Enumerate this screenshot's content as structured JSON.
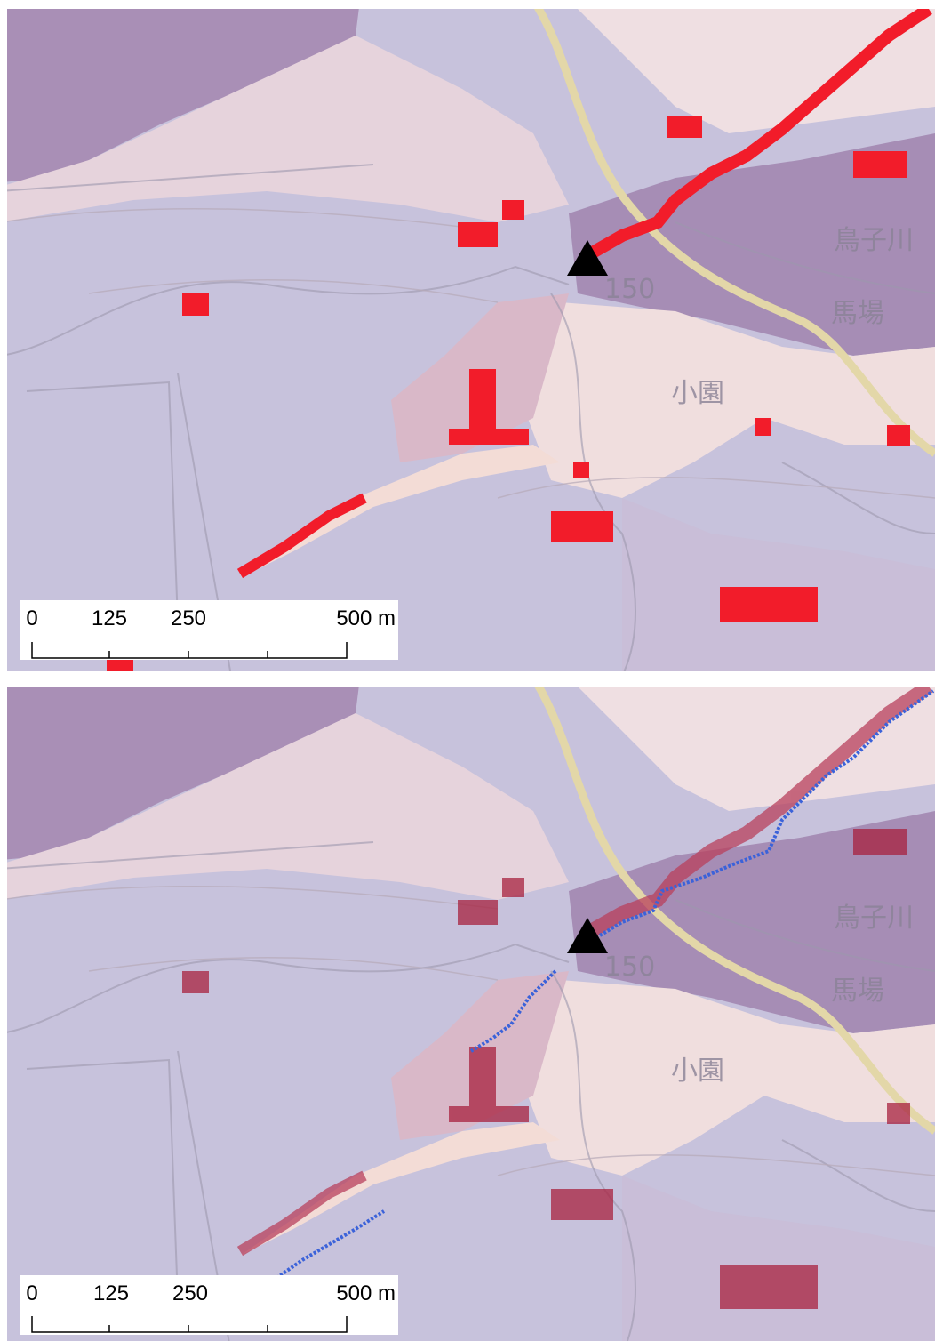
{
  "panels": [
    {
      "map_labels": [
        "150",
        "鳥子川",
        "馬場",
        "小園"
      ],
      "scale_bar": {
        "labels": [
          "0",
          "125",
          "250",
          "500 m"
        ]
      }
    },
    {
      "map_labels": [
        "150",
        "鳥子川",
        "馬場",
        "小園"
      ],
      "scale_bar": {
        "labels": [
          "0",
          "125",
          "250",
          "500 m"
        ]
      }
    }
  ]
}
